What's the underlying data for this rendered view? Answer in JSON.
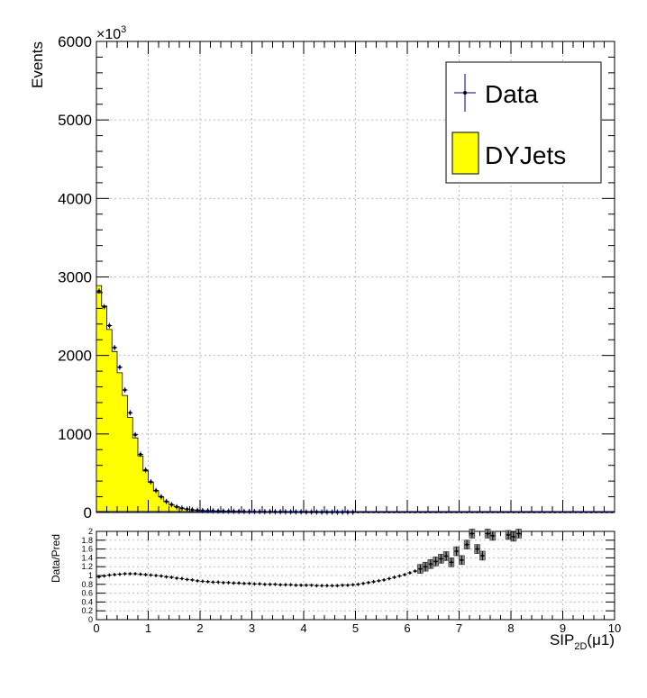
{
  "chart_data": [
    {
      "type": "histogram",
      "ylabel": "Events",
      "exponent_label": "×10",
      "exponent_power": "3",
      "xlim": [
        0,
        10
      ],
      "ylim": [
        0,
        6000
      ],
      "y_ticks": [
        "0",
        "1000",
        "2000",
        "3000",
        "4000",
        "5000",
        "6000"
      ],
      "grid": true,
      "legend_position": "top-right",
      "bin_width": 0.1,
      "bin_centers": [
        0.05,
        0.15,
        0.25,
        0.35,
        0.45,
        0.55,
        0.65,
        0.75,
        0.85,
        0.95,
        1.05,
        1.15,
        1.25,
        1.35,
        1.45,
        1.55,
        1.65,
        1.75,
        1.85,
        1.95,
        2.05,
        2.15,
        2.25,
        2.35,
        2.45,
        2.55,
        2.65,
        2.75,
        2.85,
        2.95,
        3.05,
        3.15,
        3.25,
        3.35,
        3.45,
        3.55,
        3.65,
        3.75,
        3.85,
        3.95,
        4.05,
        4.15,
        4.25,
        4.35,
        4.45,
        4.55,
        4.65,
        4.75,
        4.85,
        4.95
      ],
      "series": [
        {
          "name": "Data",
          "style": "markers-with-error-bars",
          "color": "#000080",
          "values": [
            2820,
            2620,
            2380,
            2100,
            1850,
            1560,
            1270,
            990,
            740,
            540,
            390,
            280,
            200,
            140,
            100,
            72,
            55,
            42,
            34,
            28,
            24,
            22,
            20,
            18,
            17,
            16,
            15,
            14,
            13,
            12,
            12,
            11,
            10,
            10,
            9,
            9,
            8,
            8,
            7,
            7,
            6,
            6,
            6,
            5,
            5,
            5,
            4,
            4,
            4,
            4
          ]
        },
        {
          "name": "DYJets",
          "style": "filled-step",
          "color": "#ffff00",
          "values": [
            2890,
            2630,
            2330,
            2050,
            1780,
            1490,
            1210,
            950,
            720,
            530,
            385,
            275,
            198,
            138,
            99,
            72,
            55,
            42,
            34,
            28,
            24,
            22,
            20,
            18,
            17,
            16,
            15,
            14,
            13,
            12,
            12,
            11,
            10,
            10,
            9,
            9,
            8,
            8,
            7,
            7,
            6,
            6,
            6,
            5,
            5,
            5,
            4,
            4,
            4,
            4
          ]
        }
      ]
    },
    {
      "type": "scatter",
      "ylabel": "Data/Pred",
      "xlabel_main": "SIP",
      "xlabel_sub": "2D",
      "xlabel_tail": "(μ1)",
      "xlim": [
        0,
        10
      ],
      "ylim": [
        0,
        2
      ],
      "x_ticks": [
        "0",
        "1",
        "2",
        "3",
        "4",
        "5",
        "6",
        "7",
        "8",
        "9",
        "10"
      ],
      "y_ticks": [
        "0",
        "0.2",
        "0.4",
        "0.6",
        "0.8",
        "1",
        "1.2",
        "1.4",
        "1.6",
        "1.8",
        "2"
      ],
      "grid": true,
      "points": [
        [
          0.05,
          0.97
        ],
        [
          0.15,
          0.99
        ],
        [
          0.25,
          1.01
        ],
        [
          0.35,
          1.02
        ],
        [
          0.45,
          1.03
        ],
        [
          0.55,
          1.04
        ],
        [
          0.65,
          1.04
        ],
        [
          0.75,
          1.04
        ],
        [
          0.85,
          1.03
        ],
        [
          0.95,
          1.02
        ],
        [
          1.05,
          1.01
        ],
        [
          1.15,
          1.0
        ],
        [
          1.25,
          0.99
        ],
        [
          1.35,
          0.97
        ],
        [
          1.45,
          0.96
        ],
        [
          1.55,
          0.94
        ],
        [
          1.65,
          0.93
        ],
        [
          1.75,
          0.91
        ],
        [
          1.85,
          0.9
        ],
        [
          1.95,
          0.88
        ],
        [
          2.05,
          0.87
        ],
        [
          2.15,
          0.86
        ],
        [
          2.25,
          0.85
        ],
        [
          2.35,
          0.85
        ],
        [
          2.45,
          0.84
        ],
        [
          2.55,
          0.84
        ],
        [
          2.65,
          0.83
        ],
        [
          2.75,
          0.83
        ],
        [
          2.85,
          0.82
        ],
        [
          2.95,
          0.82
        ],
        [
          3.05,
          0.81
        ],
        [
          3.15,
          0.81
        ],
        [
          3.25,
          0.8
        ],
        [
          3.35,
          0.8
        ],
        [
          3.45,
          0.8
        ],
        [
          3.55,
          0.79
        ],
        [
          3.65,
          0.79
        ],
        [
          3.75,
          0.79
        ],
        [
          3.85,
          0.78
        ],
        [
          3.95,
          0.78
        ],
        [
          4.05,
          0.78
        ],
        [
          4.15,
          0.78
        ],
        [
          4.25,
          0.77
        ],
        [
          4.35,
          0.77
        ],
        [
          4.45,
          0.77
        ],
        [
          4.55,
          0.77
        ],
        [
          4.65,
          0.77
        ],
        [
          4.75,
          0.78
        ],
        [
          4.85,
          0.78
        ],
        [
          4.95,
          0.79
        ],
        [
          5.05,
          0.8
        ],
        [
          5.15,
          0.82
        ],
        [
          5.25,
          0.84
        ],
        [
          5.35,
          0.86
        ],
        [
          5.45,
          0.88
        ],
        [
          5.55,
          0.9
        ],
        [
          5.65,
          0.93
        ],
        [
          5.75,
          0.96
        ],
        [
          5.85,
          0.99
        ],
        [
          5.95,
          1.02
        ],
        [
          6.05,
          1.06
        ],
        [
          6.15,
          1.1
        ],
        [
          6.25,
          1.15
        ],
        [
          6.35,
          1.2
        ],
        [
          6.45,
          1.26
        ],
        [
          6.55,
          1.32
        ],
        [
          6.65,
          1.38
        ],
        [
          6.75,
          1.44
        ],
        [
          6.85,
          1.3
        ],
        [
          6.95,
          1.55
        ],
        [
          7.05,
          1.35
        ],
        [
          7.15,
          1.7
        ],
        [
          7.25,
          1.95
        ],
        [
          7.35,
          1.6
        ],
        [
          7.45,
          1.45
        ],
        [
          7.55,
          1.95
        ],
        [
          7.65,
          1.9
        ],
        [
          7.95,
          1.92
        ],
        [
          8.05,
          1.88
        ],
        [
          8.15,
          1.95
        ]
      ]
    }
  ]
}
